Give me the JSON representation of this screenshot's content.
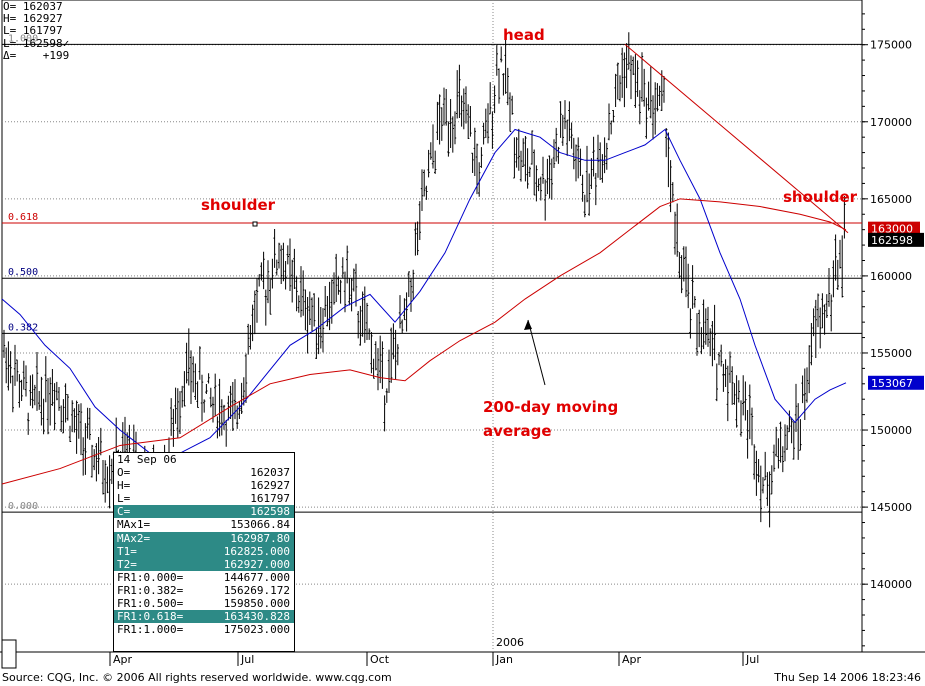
{
  "chart_data": {
    "type": "ohlc-bar",
    "title": "",
    "yaxis": {
      "ticks": [
        "140000",
        "145000",
        "150000",
        "155000",
        "160000",
        "165000",
        "170000",
        "175000"
      ],
      "tick_values": [
        140000,
        145000,
        150000,
        155000,
        160000,
        165000,
        170000,
        175000
      ],
      "range": [
        135600,
        177900
      ],
      "side": "right"
    },
    "xaxis": {
      "labels": [
        "Apr",
        "Jul",
        "Oct",
        "Jan",
        "Apr",
        "Jul"
      ],
      "year_label": "2006"
    },
    "last_price_tag": "162598",
    "upper_price_tag": "163000",
    "ma_price_tag": "153067",
    "fib_levels": [
      {
        "label": "1.000",
        "value": 175023
      },
      {
        "label": "0.618",
        "value": 163430
      },
      {
        "label": "0.500",
        "value": 159850
      },
      {
        "label": "0.382",
        "value": 156269
      },
      {
        "label": "0.000",
        "value": 144677
      }
    ],
    "series": [
      {
        "name": "MA×1",
        "color": "#0000cc"
      },
      {
        "name": "MA×2",
        "color": "#cc0000"
      }
    ],
    "annotations": {
      "head": "head",
      "left_shoulder": "shoulder",
      "right_shoulder": "shoulder",
      "ma_line1": "200-day moving",
      "ma_line2": "average"
    },
    "ohlc_header": {
      "o_label": "O=",
      "o": "162037",
      "h_label": "H=",
      "h": "162927",
      "l_label": "L=",
      "l": "161797",
      "l2_label": "L=",
      "l2": "162598✓",
      "d_label": "Δ=",
      "d": "+199"
    }
  },
  "info_panel": {
    "date": "14 Sep 06",
    "rows": [
      {
        "k": "O=",
        "v": "162037",
        "hl": false
      },
      {
        "k": "H=",
        "v": "162927",
        "hl": false
      },
      {
        "k": "L=",
        "v": "161797",
        "hl": false
      },
      {
        "k": "C=",
        "v": "162598",
        "hl": true
      },
      {
        "k": "MAx1=",
        "v": "153066.84",
        "hl": false
      },
      {
        "k": "MAx2=",
        "v": "162987.80",
        "hl": true
      },
      {
        "k": "T1=",
        "v": "162825.000",
        "hl": true
      },
      {
        "k": "T2=",
        "v": "162927.000",
        "hl": true
      },
      {
        "k": "FR1:0.000=",
        "v": "144677.000",
        "hl": false
      },
      {
        "k": "FR1:0.382=",
        "v": "156269.172",
        "hl": false
      },
      {
        "k": "FR1:0.500=",
        "v": "159850.000",
        "hl": false
      },
      {
        "k": "FR1:0.618=",
        "v": "163430.828",
        "hl": true
      },
      {
        "k": "FR1:1.000=",
        "v": "175023.000",
        "hl": false
      }
    ]
  },
  "footer": {
    "source": "Source: CQG, Inc. © 2006 All rights reserved worldwide. www.cqg.com",
    "timestamp": "Thu Sep 14 2006 18:23:46"
  },
  "colors": {
    "bars": "#000000",
    "ma_fast": "#0000cc",
    "ma_slow": "#cc0000",
    "fib_line": "#cc0000",
    "annotation": "#e00000",
    "panel_highlight": "#2d8a86"
  }
}
